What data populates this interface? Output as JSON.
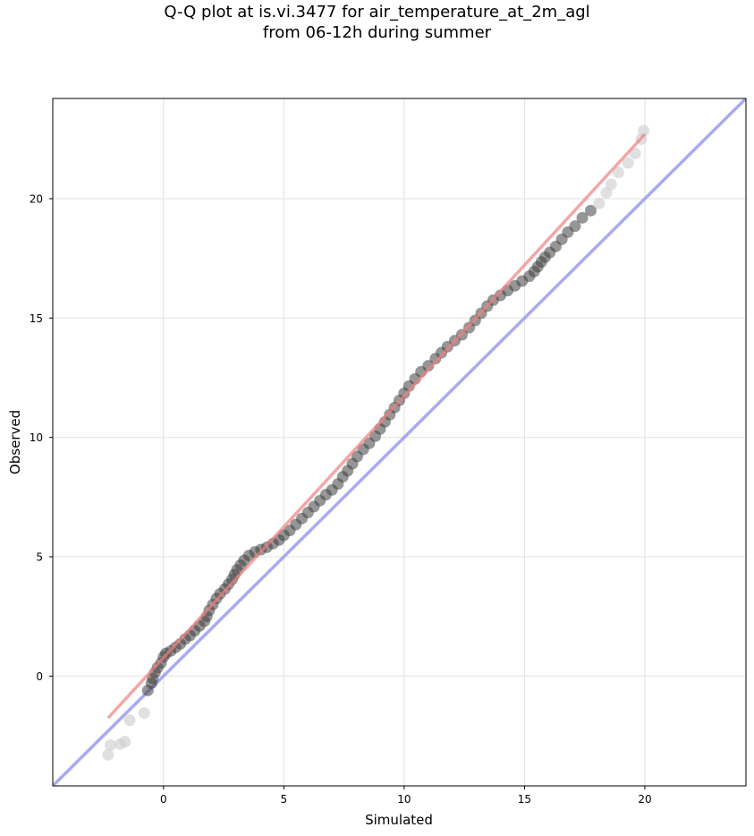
{
  "chart_data": {
    "type": "scatter",
    "title_lines": [
      "Q-Q plot at is.vi.3477 for air_temperature_at_2m_agl",
      "from 06-12h during summer"
    ],
    "xlabel": "Simulated",
    "ylabel": "Observed",
    "xlim": [
      -4.6,
      24.2
    ],
    "ylim": [
      -4.6,
      24.2
    ],
    "x_ticks": [
      0,
      5,
      10,
      15,
      20
    ],
    "y_ticks": [
      0,
      5,
      10,
      15,
      20
    ],
    "grid": true,
    "colors": {
      "points": "#404040",
      "outlier_points": "#d0d0d0",
      "fit_line": "#f08080",
      "identity_line": "#8c8cf0",
      "grid": "#e6e6e6"
    },
    "identity_line": {
      "x": [
        -4.6,
        24.2
      ],
      "y": [
        -4.6,
        24.2
      ]
    },
    "fit_line": {
      "x": [
        -2.3,
        20.0
      ],
      "y": [
        -1.75,
        22.7
      ]
    },
    "series": [
      {
        "values": [
          [
            -2.3,
            -3.3
          ],
          [
            -2.2,
            -2.9
          ],
          [
            -1.8,
            -2.85
          ],
          [
            -1.6,
            -2.75
          ],
          [
            -1.4,
            -1.85
          ],
          [
            -0.8,
            -1.55
          ],
          [
            -0.65,
            -0.6
          ],
          [
            -0.5,
            -0.3
          ],
          [
            -0.45,
            -0.1
          ],
          [
            -0.35,
            0.15
          ],
          [
            -0.25,
            0.35
          ],
          [
            -0.1,
            0.55
          ],
          [
            0.0,
            0.8
          ],
          [
            0.1,
            0.95
          ],
          [
            0.3,
            1.05
          ],
          [
            0.5,
            1.2
          ],
          [
            0.7,
            1.35
          ],
          [
            0.9,
            1.55
          ],
          [
            1.1,
            1.7
          ],
          [
            1.3,
            1.9
          ],
          [
            1.5,
            2.1
          ],
          [
            1.7,
            2.3
          ],
          [
            1.8,
            2.5
          ],
          [
            1.9,
            2.75
          ],
          [
            2.05,
            3.0
          ],
          [
            2.2,
            3.25
          ],
          [
            2.35,
            3.45
          ],
          [
            2.55,
            3.65
          ],
          [
            2.7,
            3.85
          ],
          [
            2.85,
            4.05
          ],
          [
            2.95,
            4.25
          ],
          [
            3.05,
            4.45
          ],
          [
            3.2,
            4.65
          ],
          [
            3.35,
            4.85
          ],
          [
            3.55,
            5.05
          ],
          [
            3.8,
            5.2
          ],
          [
            4.05,
            5.3
          ],
          [
            4.3,
            5.4
          ],
          [
            4.55,
            5.55
          ],
          [
            4.8,
            5.7
          ],
          [
            5.0,
            5.9
          ],
          [
            5.25,
            6.1
          ],
          [
            5.5,
            6.35
          ],
          [
            5.75,
            6.6
          ],
          [
            6.0,
            6.85
          ],
          [
            6.25,
            7.1
          ],
          [
            6.5,
            7.35
          ],
          [
            6.75,
            7.6
          ],
          [
            7.0,
            7.8
          ],
          [
            7.25,
            8.05
          ],
          [
            7.45,
            8.35
          ],
          [
            7.65,
            8.6
          ],
          [
            7.85,
            8.9
          ],
          [
            8.05,
            9.2
          ],
          [
            8.3,
            9.5
          ],
          [
            8.55,
            9.75
          ],
          [
            8.8,
            10.05
          ],
          [
            9.0,
            10.35
          ],
          [
            9.2,
            10.65
          ],
          [
            9.4,
            10.95
          ],
          [
            9.6,
            11.25
          ],
          [
            9.8,
            11.55
          ],
          [
            10.0,
            11.85
          ],
          [
            10.2,
            12.15
          ],
          [
            10.45,
            12.45
          ],
          [
            10.7,
            12.75
          ],
          [
            11.0,
            13.0
          ],
          [
            11.3,
            13.3
          ],
          [
            11.55,
            13.55
          ],
          [
            11.8,
            13.8
          ],
          [
            12.1,
            14.05
          ],
          [
            12.4,
            14.3
          ],
          [
            12.7,
            14.6
          ],
          [
            12.95,
            14.9
          ],
          [
            13.2,
            15.2
          ],
          [
            13.45,
            15.5
          ],
          [
            13.7,
            15.75
          ],
          [
            14.0,
            15.95
          ],
          [
            14.3,
            16.15
          ],
          [
            14.6,
            16.35
          ],
          [
            14.9,
            16.55
          ],
          [
            15.2,
            16.75
          ],
          [
            15.4,
            16.95
          ],
          [
            15.55,
            17.15
          ],
          [
            15.7,
            17.35
          ],
          [
            15.85,
            17.55
          ],
          [
            16.05,
            17.75
          ],
          [
            16.3,
            18.0
          ],
          [
            16.55,
            18.3
          ],
          [
            16.8,
            18.6
          ],
          [
            17.1,
            18.85
          ],
          [
            17.4,
            19.2
          ],
          [
            17.75,
            19.5
          ],
          [
            18.1,
            19.8
          ],
          [
            18.4,
            20.25
          ],
          [
            18.6,
            20.6
          ],
          [
            18.9,
            21.1
          ],
          [
            19.3,
            21.5
          ],
          [
            19.6,
            21.9
          ],
          [
            19.85,
            22.5
          ],
          [
            19.95,
            22.85
          ]
        ]
      }
    ]
  }
}
